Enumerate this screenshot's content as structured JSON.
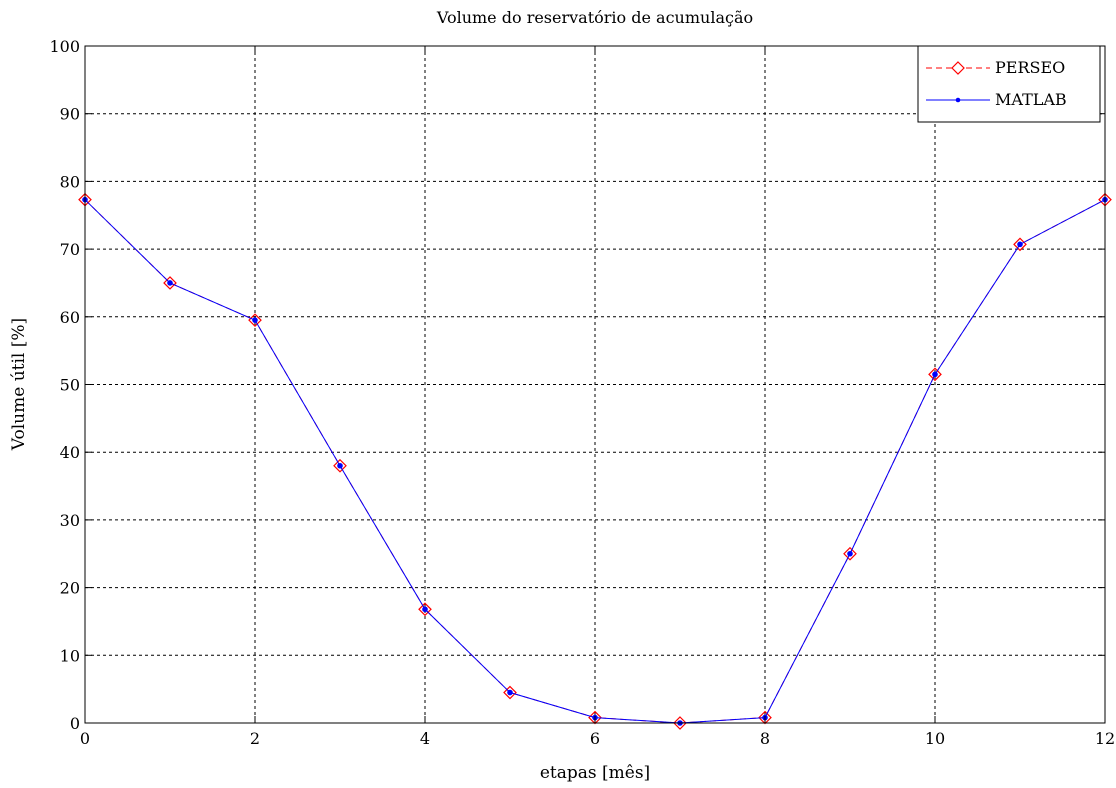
{
  "chart_data": {
    "type": "line",
    "title": "Volume do reservatório de acumulação",
    "xlabel": "etapas [mês]",
    "ylabel": "Volume útil [%]",
    "xlim": [
      0,
      12
    ],
    "ylim": [
      0,
      100
    ],
    "xticks": [
      0,
      2,
      4,
      6,
      8,
      10,
      12
    ],
    "yticks": [
      0,
      10,
      20,
      30,
      40,
      50,
      60,
      70,
      80,
      90,
      100
    ],
    "grid": true,
    "legend_position": "top-right",
    "x": [
      0,
      1,
      2,
      3,
      4,
      5,
      6,
      7,
      8,
      9,
      10,
      11,
      12
    ],
    "series": [
      {
        "name": "PERSEO",
        "color": "#ff0000",
        "line_style": "dashed",
        "marker": "diamond-open",
        "values": [
          77.3,
          65.0,
          59.5,
          38.0,
          16.8,
          4.5,
          0.8,
          0.0,
          0.8,
          25.0,
          51.5,
          70.7,
          77.3
        ]
      },
      {
        "name": "MATLAB",
        "color": "#0000ff",
        "line_style": "solid",
        "marker": "dot",
        "values": [
          77.3,
          65.0,
          59.5,
          38.0,
          16.8,
          4.5,
          0.8,
          0.0,
          0.8,
          25.0,
          51.5,
          70.7,
          77.3
        ]
      }
    ]
  }
}
